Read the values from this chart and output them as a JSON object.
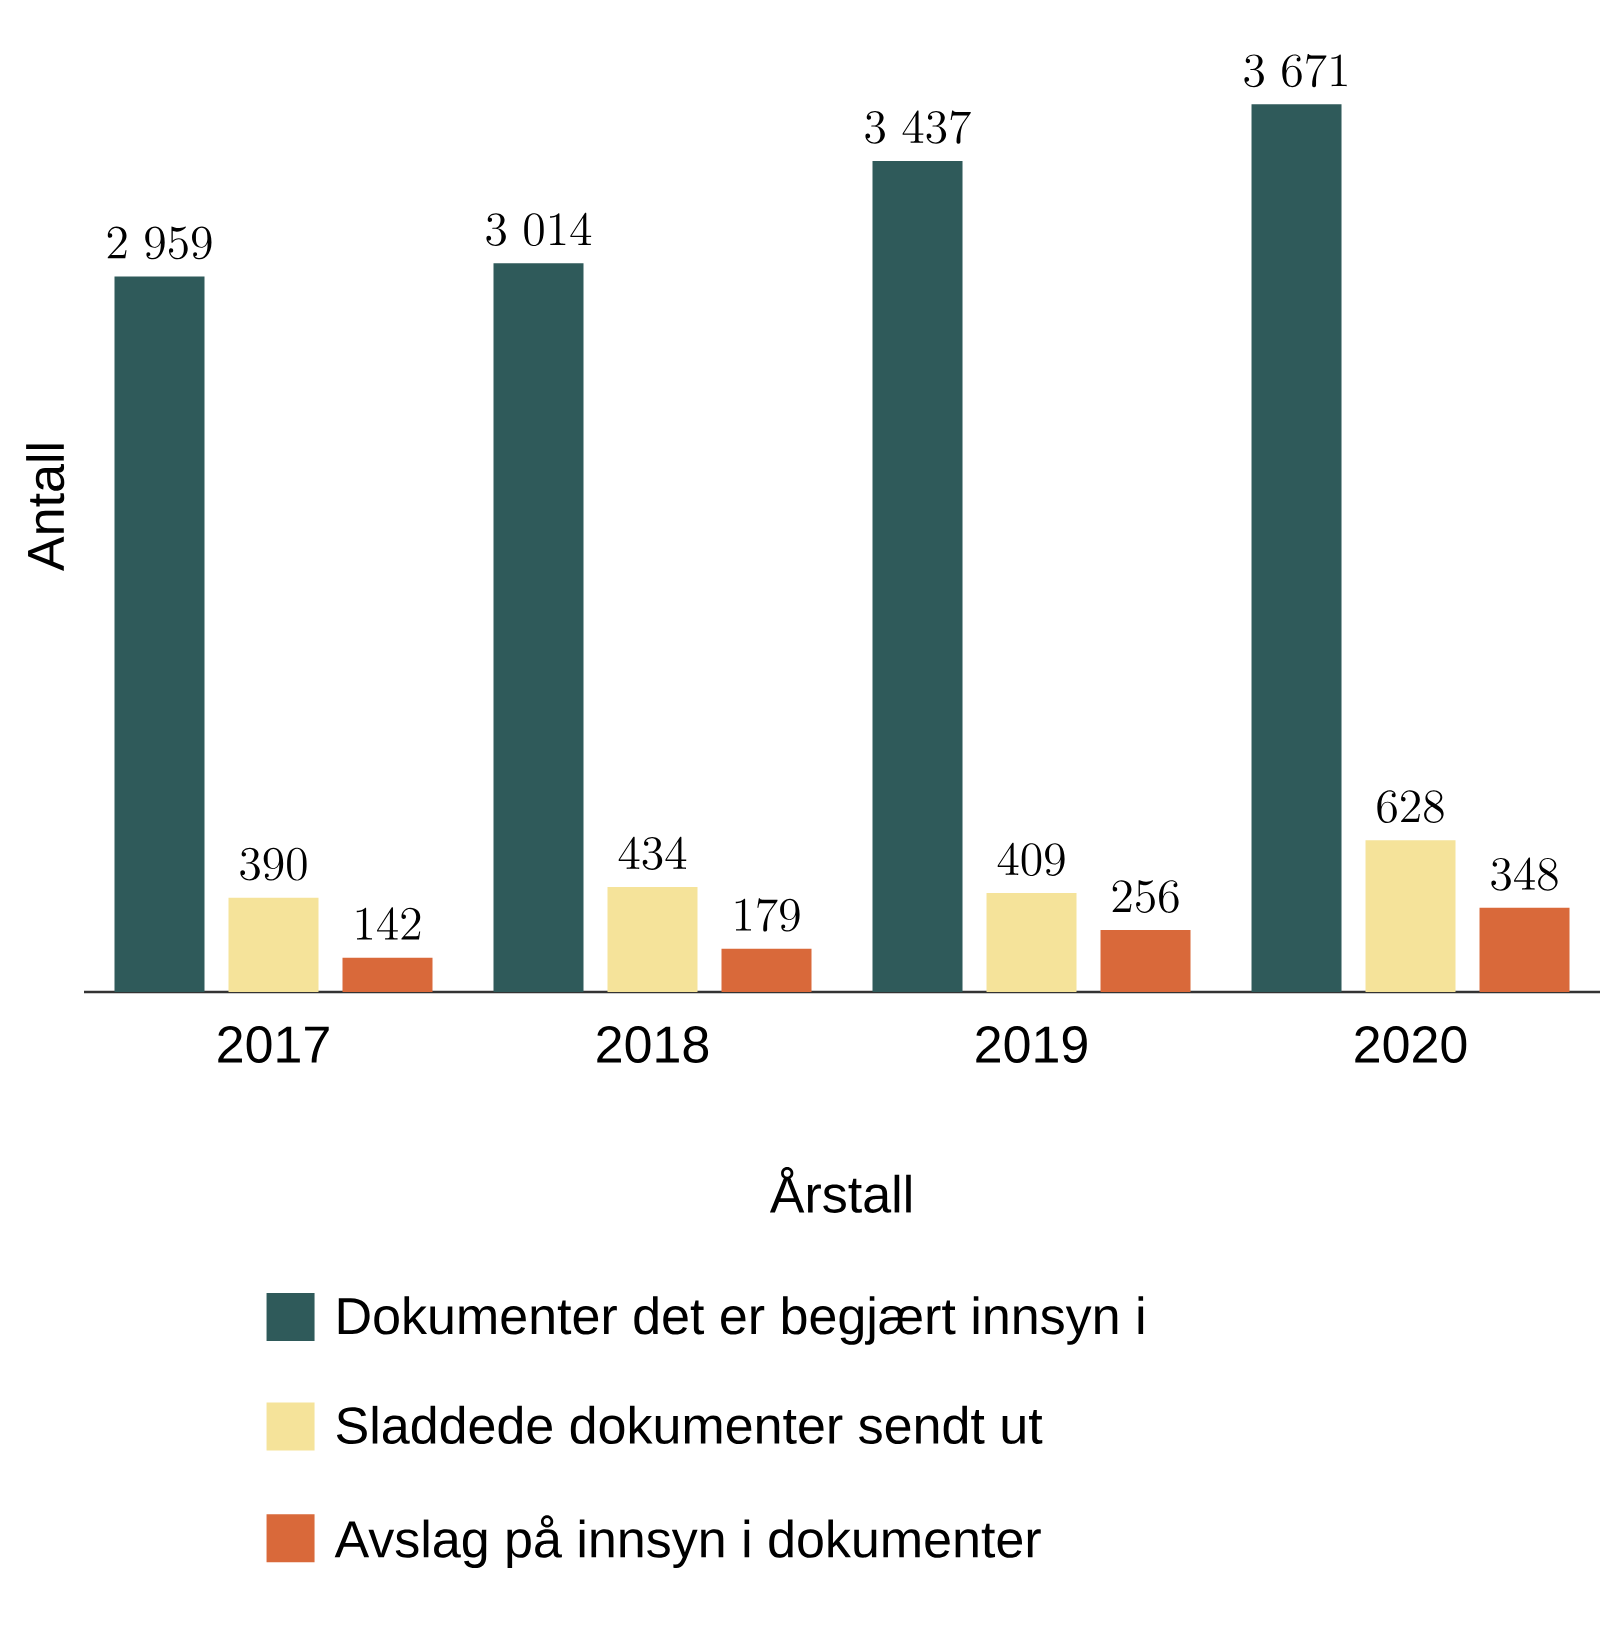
{
  "chart_data": {
    "type": "bar",
    "xlabel": "Årstall",
    "ylabel": "Antall",
    "categories": [
      "2017",
      "2018",
      "2019",
      "2020"
    ],
    "series": [
      {
        "name": "Dokumenter det er begjært innsyn i",
        "color": "#2f5a5a",
        "values": [
          2959,
          3014,
          3437,
          3671
        ]
      },
      {
        "name": "Sladdede dokumenter sendt ut",
        "color": "#f5e39a",
        "values": [
          390,
          434,
          409,
          628
        ]
      },
      {
        "name": "Avslag på innsyn i dokumenter",
        "color": "#d9693a",
        "values": [
          142,
          179,
          256,
          348
        ]
      }
    ],
    "data_labels": true,
    "legend": "bottom"
  }
}
